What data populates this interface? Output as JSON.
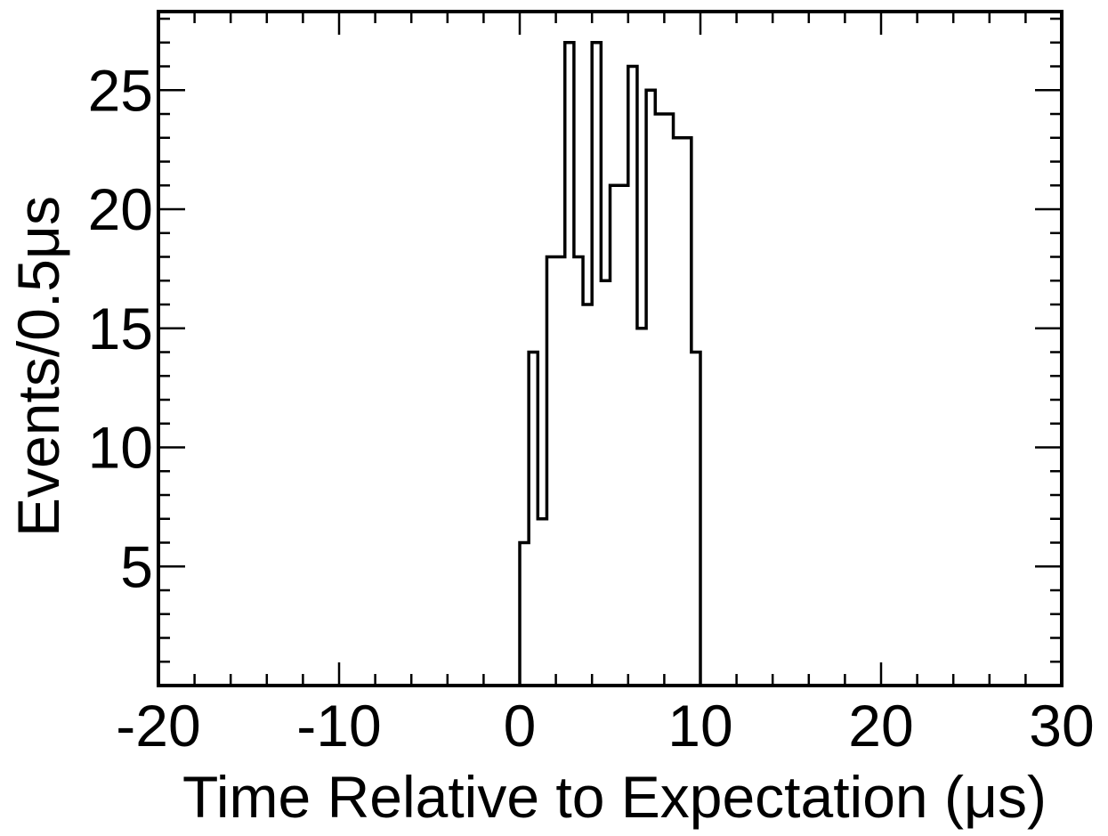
{
  "chart_data": {
    "type": "histogram",
    "xlabel": "Time Relative to Expectation (μs)",
    "ylabel": "Events/0.5μs",
    "xlim": [
      -20,
      30
    ],
    "ylim": [
      0,
      28.3
    ],
    "x_ticks": [
      -20,
      -10,
      0,
      10,
      20,
      30
    ],
    "x_tick_labels": [
      "-20",
      "-10",
      "0",
      "10",
      "20",
      "30"
    ],
    "y_ticks": [
      5,
      10,
      15,
      20,
      25
    ],
    "y_tick_labels": [
      "5",
      "10",
      "15",
      "20",
      "25"
    ],
    "x_minor_step": 2,
    "y_minor_step": 1,
    "bin_width": 0.5,
    "bin_edges": [
      0,
      0.5,
      1,
      1.5,
      2,
      2.5,
      3,
      3.5,
      4,
      4.5,
      5,
      5.5,
      6,
      6.5,
      7,
      7.5,
      8,
      8.5,
      9,
      9.5,
      10
    ],
    "values": [
      6,
      14,
      7,
      18,
      18,
      27,
      18,
      16,
      27,
      17,
      21,
      21,
      26,
      15,
      25,
      24,
      24,
      23,
      23,
      14
    ],
    "grid": false,
    "line_color": "#000000"
  }
}
